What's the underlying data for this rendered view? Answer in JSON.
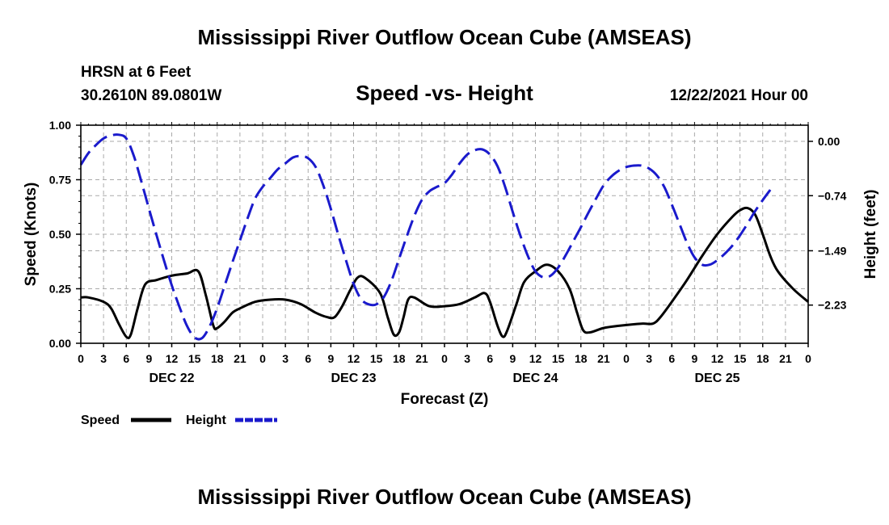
{
  "header": {
    "title": "Mississippi River Outflow Ocean Cube (AMSEAS)",
    "station": "HRSN at 6 Feet",
    "location": "30.2610N  89.0801W",
    "subtitle": "Speed -vs- Height",
    "datetime": "12/22/2021 Hour 00",
    "footer_title": "Mississippi River Outflow Ocean Cube (AMSEAS)"
  },
  "legend": {
    "speed_label": "Speed",
    "height_label": "Height"
  },
  "colors": {
    "speed": "#000000",
    "height": "#1a1acc",
    "grid": "#aaaaaa"
  },
  "chart_data": {
    "type": "line",
    "title": "Speed -vs- Height",
    "xlabel": "Forecast (Z)",
    "ylabel": "Speed (Knots)",
    "y2label": "Height (feet)",
    "xlim": [
      0,
      96
    ],
    "ylim": [
      0,
      1.0
    ],
    "y2lim": [
      -2.75,
      0.22
    ],
    "x_tick_labels": [
      "0",
      "3",
      "6",
      "9",
      "12",
      "15",
      "18",
      "21",
      "0",
      "3",
      "6",
      "9",
      "12",
      "15",
      "18",
      "21",
      "0",
      "3",
      "6",
      "9",
      "12",
      "15",
      "18",
      "21",
      "0",
      "3",
      "6",
      "9",
      "12",
      "15",
      "18",
      "21",
      "0"
    ],
    "y_ticks": [
      0.0,
      0.25,
      0.5,
      0.75,
      1.0
    ],
    "y_tick_labels": [
      "0.00",
      "0.25",
      "0.50",
      "0.75",
      "1.00"
    ],
    "y2_ticks": [
      0.0,
      -0.74,
      -1.49,
      -2.23
    ],
    "y2_tick_labels": [
      "0.00",
      "−0.74",
      "−1.49",
      "−2.23"
    ],
    "day_labels": [
      {
        "label": "DEC 22",
        "x": 12
      },
      {
        "label": "DEC 23",
        "x": 36
      },
      {
        "label": "DEC 24",
        "x": 60
      },
      {
        "label": "DEC 25",
        "x": 84
      }
    ],
    "series": [
      {
        "name": "Speed",
        "axis": "left",
        "style": "solid",
        "points": [
          [
            0,
            0.21
          ],
          [
            1,
            0.21
          ],
          [
            3,
            0.19
          ],
          [
            4,
            0.16
          ],
          [
            5,
            0.09
          ],
          [
            6,
            0.03
          ],
          [
            6.6,
            0.04
          ],
          [
            7.5,
            0.16
          ],
          [
            8.5,
            0.27
          ],
          [
            10,
            0.29
          ],
          [
            12,
            0.31
          ],
          [
            14,
            0.32
          ],
          [
            15.5,
            0.33
          ],
          [
            16.5,
            0.22
          ],
          [
            17.5,
            0.08
          ],
          [
            18,
            0.07
          ],
          [
            19,
            0.1
          ],
          [
            20,
            0.14
          ],
          [
            21,
            0.16
          ],
          [
            23,
            0.19
          ],
          [
            25,
            0.2
          ],
          [
            27,
            0.2
          ],
          [
            29,
            0.18
          ],
          [
            31,
            0.14
          ],
          [
            32.5,
            0.12
          ],
          [
            33.5,
            0.12
          ],
          [
            34.5,
            0.17
          ],
          [
            35.5,
            0.24
          ],
          [
            36.5,
            0.3
          ],
          [
            37.5,
            0.3
          ],
          [
            39.5,
            0.23
          ],
          [
            40.5,
            0.12
          ],
          [
            41.3,
            0.04
          ],
          [
            42,
            0.05
          ],
          [
            42.6,
            0.12
          ],
          [
            43.2,
            0.2
          ],
          [
            44,
            0.21
          ],
          [
            46,
            0.17
          ],
          [
            48,
            0.17
          ],
          [
            50,
            0.18
          ],
          [
            52,
            0.21
          ],
          [
            53.3,
            0.23
          ],
          [
            54,
            0.19
          ],
          [
            55,
            0.08
          ],
          [
            55.7,
            0.03
          ],
          [
            56.3,
            0.06
          ],
          [
            57.5,
            0.18
          ],
          [
            58.5,
            0.28
          ],
          [
            60,
            0.33
          ],
          [
            61.5,
            0.36
          ],
          [
            63,
            0.33
          ],
          [
            64.5,
            0.25
          ],
          [
            65.5,
            0.14
          ],
          [
            66.3,
            0.06
          ],
          [
            67.2,
            0.05
          ],
          [
            69,
            0.07
          ],
          [
            71,
            0.08
          ],
          [
            74,
            0.09
          ],
          [
            75.5,
            0.09
          ],
          [
            76.5,
            0.12
          ],
          [
            78,
            0.19
          ],
          [
            80,
            0.29
          ],
          [
            82,
            0.4
          ],
          [
            84,
            0.5
          ],
          [
            86,
            0.58
          ],
          [
            87,
            0.61
          ],
          [
            88,
            0.62
          ],
          [
            89,
            0.59
          ],
          [
            90,
            0.5
          ],
          [
            91,
            0.4
          ],
          [
            92,
            0.33
          ],
          [
            94,
            0.25
          ],
          [
            96,
            0.19
          ]
        ]
      },
      {
        "name": "Height",
        "axis": "right",
        "style": "dashed",
        "points": [
          [
            0,
            -0.32
          ],
          [
            1,
            -0.16
          ],
          [
            2,
            -0.05
          ],
          [
            3,
            0.04
          ],
          [
            4,
            0.08
          ],
          [
            5,
            0.09
          ],
          [
            6,
            0.04
          ],
          [
            7,
            -0.2
          ],
          [
            8,
            -0.55
          ],
          [
            9,
            -0.92
          ],
          [
            10,
            -1.28
          ],
          [
            11,
            -1.63
          ],
          [
            12,
            -1.96
          ],
          [
            13,
            -2.25
          ],
          [
            14,
            -2.51
          ],
          [
            15,
            -2.67
          ],
          [
            16,
            -2.68
          ],
          [
            17,
            -2.52
          ],
          [
            18,
            -2.27
          ],
          [
            19,
            -1.96
          ],
          [
            20,
            -1.65
          ],
          [
            21,
            -1.35
          ],
          [
            22,
            -1.05
          ],
          [
            23,
            -0.78
          ],
          [
            24,
            -0.62
          ],
          [
            25,
            -0.5
          ],
          [
            26,
            -0.38
          ],
          [
            27,
            -0.3
          ],
          [
            28,
            -0.22
          ],
          [
            29,
            -0.2
          ],
          [
            30,
            -0.23
          ],
          [
            31,
            -0.35
          ],
          [
            32,
            -0.6
          ],
          [
            33,
            -0.92
          ],
          [
            34,
            -1.28
          ],
          [
            35,
            -1.62
          ],
          [
            36,
            -1.94
          ],
          [
            37,
            -2.15
          ],
          [
            38,
            -2.22
          ],
          [
            39,
            -2.22
          ],
          [
            40,
            -2.12
          ],
          [
            41,
            -1.9
          ],
          [
            42,
            -1.6
          ],
          [
            43,
            -1.3
          ],
          [
            44,
            -1.02
          ],
          [
            45,
            -0.8
          ],
          [
            46,
            -0.68
          ],
          [
            47,
            -0.62
          ],
          [
            48,
            -0.57
          ],
          [
            49,
            -0.45
          ],
          [
            50,
            -0.3
          ],
          [
            51,
            -0.18
          ],
          [
            52,
            -0.12
          ],
          [
            53,
            -0.11
          ],
          [
            54,
            -0.18
          ],
          [
            55,
            -0.34
          ],
          [
            56,
            -0.62
          ],
          [
            57,
            -0.96
          ],
          [
            58,
            -1.28
          ],
          [
            59,
            -1.56
          ],
          [
            60,
            -1.77
          ],
          [
            61,
            -1.85
          ],
          [
            62,
            -1.83
          ],
          [
            63,
            -1.72
          ],
          [
            64,
            -1.55
          ],
          [
            65,
            -1.36
          ],
          [
            66,
            -1.17
          ],
          [
            67,
            -0.97
          ],
          [
            68,
            -0.78
          ],
          [
            69,
            -0.6
          ],
          [
            70,
            -0.48
          ],
          [
            71,
            -0.4
          ],
          [
            72,
            -0.35
          ],
          [
            73,
            -0.33
          ],
          [
            74,
            -0.33
          ],
          [
            75,
            -0.37
          ],
          [
            76,
            -0.46
          ],
          [
            77,
            -0.62
          ],
          [
            78,
            -0.86
          ],
          [
            79,
            -1.12
          ],
          [
            80,
            -1.38
          ],
          [
            81,
            -1.58
          ],
          [
            82,
            -1.68
          ],
          [
            83,
            -1.68
          ],
          [
            84,
            -1.62
          ],
          [
            85,
            -1.53
          ],
          [
            86,
            -1.42
          ],
          [
            87,
            -1.28
          ],
          [
            88,
            -1.12
          ],
          [
            89,
            -0.95
          ],
          [
            90,
            -0.8
          ],
          [
            91,
            -0.66
          ]
        ]
      }
    ]
  }
}
